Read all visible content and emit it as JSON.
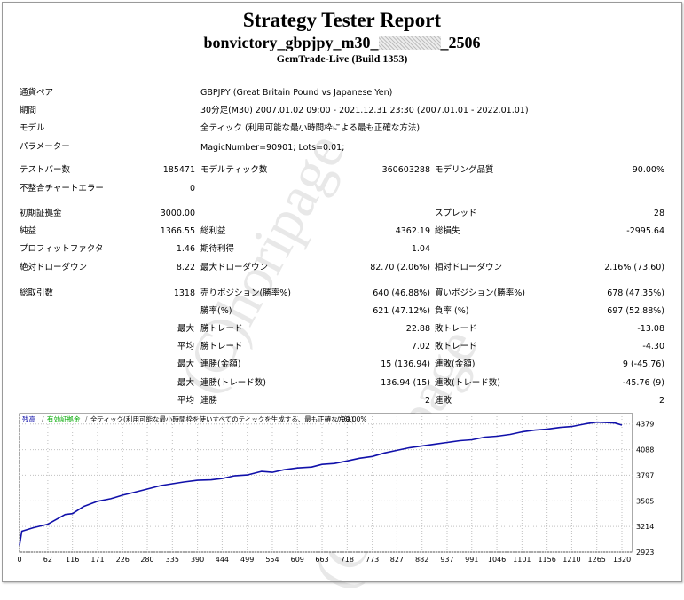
{
  "report": {
    "title": "Strategy Tester Report",
    "expert_prefix": "bonvictory_gbpjpy_m30_",
    "expert_suffix": "_2506",
    "server": "GemTrade-Live (Build 1353)"
  },
  "info": [
    {
      "label": "通貨ペア",
      "value": "GBPJPY (Great Britain Pound vs Japanese Yen)"
    },
    {
      "label": "期間",
      "value": "30分足(M30) 2007.01.02 09:00 - 2021.12.31 23:30 (2007.01.01 - 2022.01.01)"
    },
    {
      "label": "モデル",
      "value": "全ティック (利用可能な最小時間枠による最も正確な方法)"
    },
    {
      "label": "パラメーター",
      "value": "MagicNumber=90901; Lots=0.01;"
    }
  ],
  "stats": {
    "bars_label": "テストバー数",
    "bars": "185471",
    "ticks_label": "モデルティック数",
    "ticks": "360603288",
    "quality_label": "モデリング品質",
    "quality": "90.00%",
    "mismatch_label": "不整合チャートエラー",
    "mismatch": "0",
    "deposit_label": "初期証拠金",
    "deposit": "3000.00",
    "spread_label": "スプレッド",
    "spread": "28",
    "net_label": "純益",
    "net": "1366.55",
    "gross_profit_label": "総利益",
    "gross_profit": "4362.19",
    "gross_loss_label": "総損失",
    "gross_loss": "-2995.64",
    "pf_label": "プロフィットファクタ",
    "pf": "1.46",
    "expected_label": "期待利得",
    "expected": "1.04",
    "abs_dd_label": "絶対ドローダウン",
    "abs_dd": "8.22",
    "max_dd_label": "最大ドローダウン",
    "max_dd": "82.70 (2.06%)",
    "rel_dd_label": "相対ドローダウン",
    "rel_dd": "2.16% (73.60)",
    "trades_label": "総取引数",
    "trades": "1318",
    "short_label": "売りポジション(勝率%)",
    "short": "640 (46.88%)",
    "long_label": "買いポジション(勝率%)",
    "long": "678 (47.35%)",
    "win_pct_label": "勝率(%)",
    "win_pct": "621 (47.12%)",
    "loss_pct_label": "負率 (%)",
    "loss_pct": "697 (52.88%)",
    "max1": "最大",
    "largest_win_label": "勝トレード",
    "largest_win": "22.88",
    "largest_loss_label": "敗トレード",
    "largest_loss": "-13.08",
    "avg": "平均",
    "avg_win_label": "勝トレード",
    "avg_win": "7.02",
    "avg_loss_label": "敗トレード",
    "avg_loss": "-4.30",
    "max2": "最大",
    "cons_win_money_label": "連勝(金額)",
    "cons_win_money": "15 (136.94)",
    "cons_loss_money_label": "連敗(金額)",
    "cons_loss_money": "9 (-45.76)",
    "max3": "最大",
    "cons_win_count_label": "連勝(トレード数)",
    "cons_win_count": "136.94 (15)",
    "cons_loss_count_label": "連敗(トレード数)",
    "cons_loss_count": "-45.76 (9)",
    "avg2": "平均",
    "avg_cons_win_label": "連勝",
    "avg_cons_win": "2",
    "avg_cons_loss_label": "連敗",
    "avg_cons_loss": "2"
  },
  "watermark": "(C)horipage",
  "chart_legend": {
    "balance": "残高",
    "equity": "有効証拠金",
    "model": "全ティック(利用可能な最小時間枠を使いすべてのティックを生成する、最も正確な方法)",
    "quality": "90.00%"
  },
  "colors": {
    "balance": "#1010aa",
    "equity": "#00aa00",
    "grid": "#c0c0c0"
  },
  "chart_data": {
    "type": "line",
    "title": "",
    "xlabel": "",
    "ylabel": "",
    "x_ticks": [
      0,
      62,
      116,
      171,
      226,
      280,
      335,
      390,
      444,
      499,
      554,
      609,
      663,
      718,
      773,
      827,
      882,
      937,
      991,
      1046,
      1101,
      1156,
      1210,
      1265,
      1320
    ],
    "y_ticks": [
      2923,
      3214,
      3505,
      3797,
      4088,
      4379
    ],
    "xlim": [
      0,
      1320
    ],
    "ylim": [
      2923,
      4437
    ],
    "series": [
      {
        "name": "残高",
        "x": [
          0,
          5,
          30,
          62,
          100,
          116,
          140,
          171,
          200,
          226,
          250,
          280,
          310,
          335,
          360,
          390,
          420,
          444,
          470,
          499,
          530,
          554,
          580,
          609,
          640,
          663,
          690,
          718,
          745,
          773,
          800,
          827,
          855,
          882,
          910,
          937,
          965,
          991,
          1020,
          1046,
          1075,
          1101,
          1130,
          1156,
          1185,
          1210,
          1240,
          1265,
          1290,
          1305,
          1320
        ],
        "values": [
          3000,
          3160,
          3200,
          3240,
          3350,
          3360,
          3440,
          3500,
          3530,
          3570,
          3600,
          3640,
          3680,
          3700,
          3720,
          3740,
          3745,
          3760,
          3790,
          3800,
          3840,
          3830,
          3860,
          3880,
          3890,
          3920,
          3930,
          3960,
          3990,
          4010,
          4050,
          4080,
          4110,
          4130,
          4150,
          4170,
          4190,
          4200,
          4230,
          4240,
          4260,
          4290,
          4310,
          4320,
          4340,
          4350,
          4380,
          4400,
          4395,
          4390,
          4366
        ]
      }
    ]
  }
}
